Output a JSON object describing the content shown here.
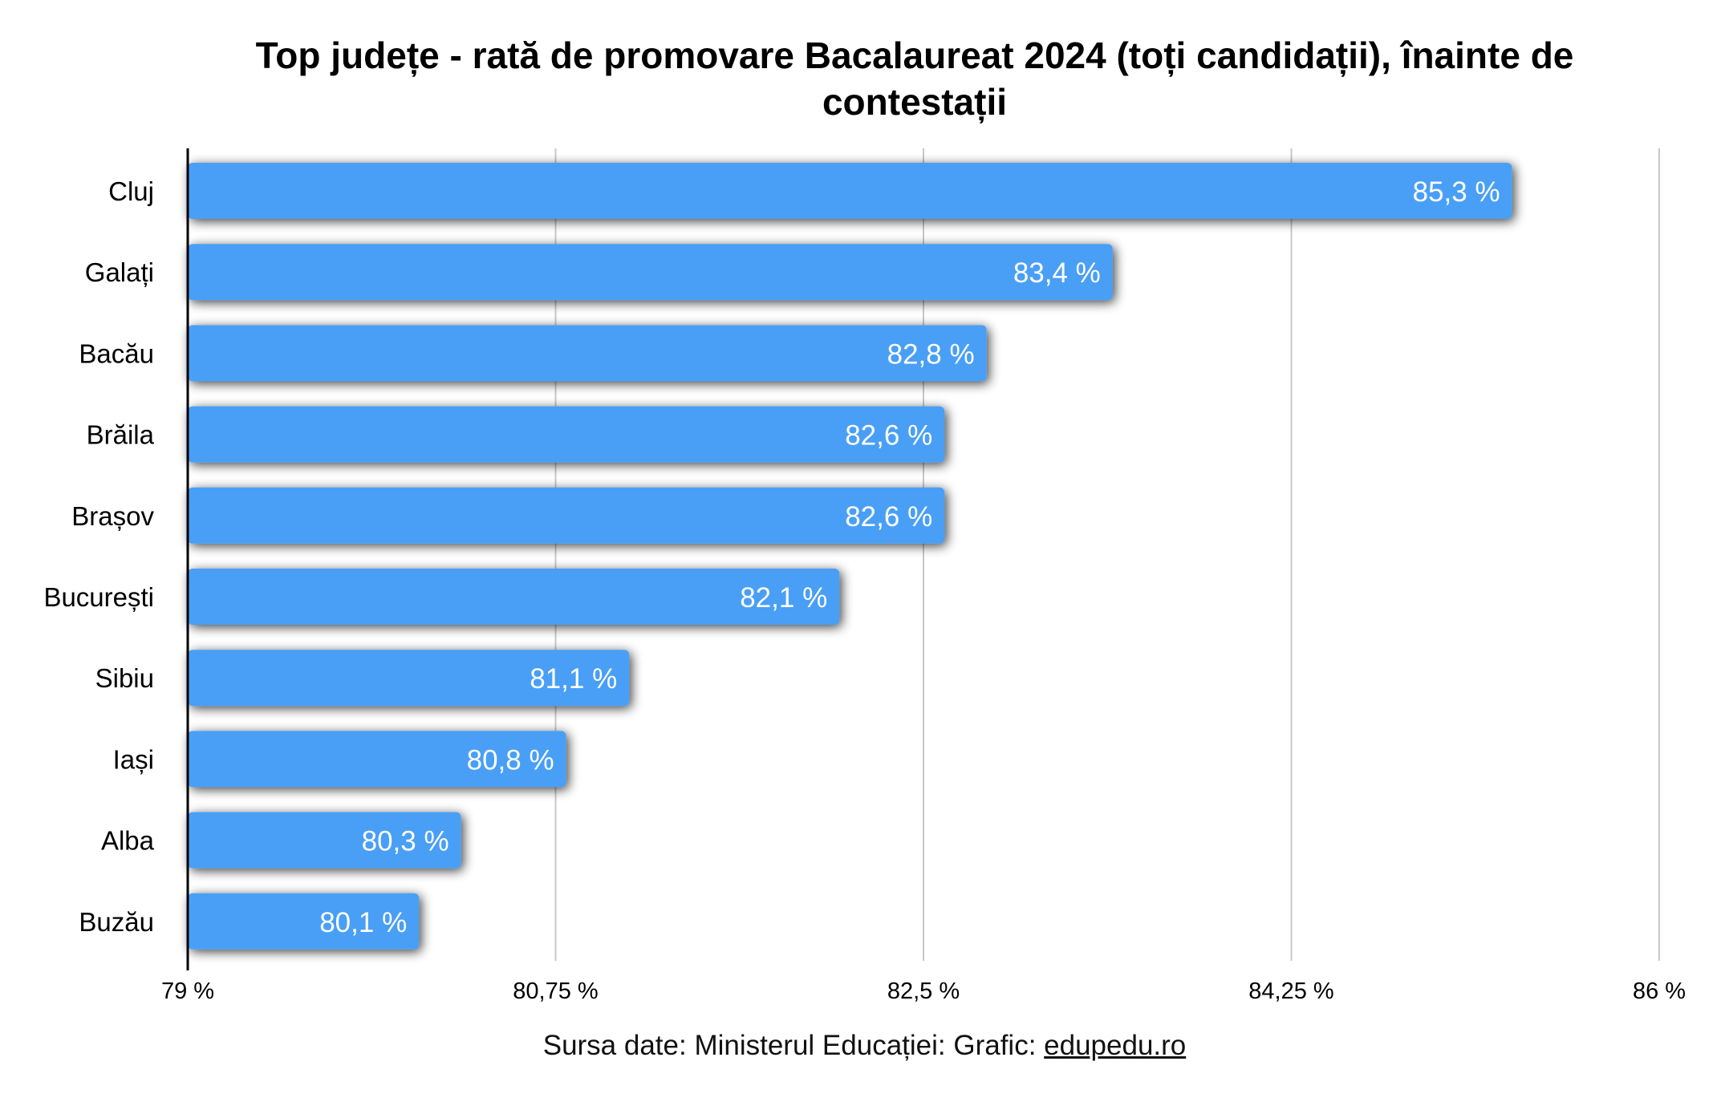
{
  "chart_data": {
    "type": "bar",
    "orientation": "horizontal",
    "title": "Top județe - rată de promovare Bacalaureat 2024 (toți candidații), înainte de contestații",
    "categories": [
      "Cluj",
      "Galați",
      "Bacău",
      "Brăila",
      "Brașov",
      "București",
      "Sibiu",
      "Iași",
      "Alba",
      "Buzău"
    ],
    "values": [
      85.3,
      83.4,
      82.8,
      82.6,
      82.6,
      82.1,
      81.1,
      80.8,
      80.3,
      80.1
    ],
    "value_labels": [
      "85,3 %",
      "83,4 %",
      "82,8 %",
      "82,6 %",
      "82,6 %",
      "82,1 %",
      "81,1 %",
      "80,8 %",
      "80,3 %",
      "80,1 %"
    ],
    "xlim": [
      79,
      86
    ],
    "x_ticks": [
      79,
      80.75,
      82.5,
      84.25,
      86
    ],
    "x_tick_labels": [
      "79 %",
      "80,75 %",
      "82,5 %",
      "84,25 %",
      "86 %"
    ],
    "grid": true,
    "bar_color": "#4a9ff5"
  },
  "footer": {
    "source_text": "Sursa date: Ministerul Educației: Grafic: ",
    "link_text": "edupedu.ro"
  }
}
